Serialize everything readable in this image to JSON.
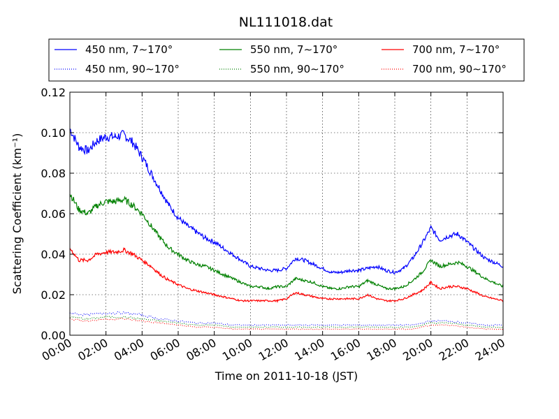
{
  "chart_data": {
    "type": "line",
    "title": "NL111018.dat",
    "xlabel": "Time on 2011-10-18 (JST)",
    "ylabel": "Scattering Coefficient (km⁻¹)",
    "xlim": [
      "00:00",
      "24:00"
    ],
    "ylim": [
      0,
      0.12
    ],
    "x_ticks": [
      "00:00",
      "02:00",
      "04:00",
      "06:00",
      "08:00",
      "10:00",
      "12:00",
      "14:00",
      "16:00",
      "18:00",
      "20:00",
      "22:00",
      "24:00"
    ],
    "y_ticks": [
      "0.00",
      "0.02",
      "0.04",
      "0.06",
      "0.08",
      "0.10",
      "0.12"
    ],
    "grid": true,
    "legend_position": "top",
    "series": [
      {
        "name": "450 nm, 7∼170°",
        "color": "#0000ff",
        "style": "solid",
        "x": [
          0,
          0.5,
          1,
          1.5,
          2,
          2.5,
          3,
          3.5,
          4,
          4.5,
          5,
          5.5,
          6,
          6.5,
          7,
          7.5,
          8,
          8.5,
          9,
          9.5,
          10,
          10.5,
          11,
          11.5,
          12,
          12.5,
          13,
          13.5,
          14,
          14.5,
          15,
          15.5,
          16,
          16.5,
          17,
          17.5,
          18,
          18.5,
          19,
          19.5,
          20,
          20.5,
          21,
          21.5,
          22,
          22.5,
          23,
          23.5,
          24
        ],
        "y": [
          0.102,
          0.093,
          0.091,
          0.096,
          0.098,
          0.098,
          0.099,
          0.095,
          0.088,
          0.08,
          0.072,
          0.064,
          0.058,
          0.054,
          0.051,
          0.048,
          0.046,
          0.043,
          0.04,
          0.037,
          0.034,
          0.033,
          0.032,
          0.032,
          0.033,
          0.038,
          0.037,
          0.035,
          0.033,
          0.031,
          0.031,
          0.032,
          0.032,
          0.033,
          0.034,
          0.032,
          0.031,
          0.033,
          0.038,
          0.045,
          0.053,
          0.047,
          0.049,
          0.05,
          0.046,
          0.042,
          0.038,
          0.036,
          0.034
        ]
      },
      {
        "name": "550 nm, 7∼170°",
        "color": "#008000",
        "style": "solid",
        "x": [
          0,
          0.5,
          1,
          1.5,
          2,
          2.5,
          3,
          3.5,
          4,
          4.5,
          5,
          5.5,
          6,
          6.5,
          7,
          7.5,
          8,
          8.5,
          9,
          9.5,
          10,
          10.5,
          11,
          11.5,
          12,
          12.5,
          13,
          13.5,
          14,
          14.5,
          15,
          15.5,
          16,
          16.5,
          17,
          17.5,
          18,
          18.5,
          19,
          19.5,
          20,
          20.5,
          21,
          21.5,
          22,
          22.5,
          23,
          23.5,
          24
        ],
        "y": [
          0.07,
          0.062,
          0.06,
          0.064,
          0.066,
          0.066,
          0.067,
          0.064,
          0.06,
          0.054,
          0.048,
          0.043,
          0.04,
          0.037,
          0.035,
          0.034,
          0.032,
          0.03,
          0.028,
          0.026,
          0.024,
          0.024,
          0.023,
          0.024,
          0.024,
          0.028,
          0.027,
          0.026,
          0.024,
          0.023,
          0.023,
          0.024,
          0.024,
          0.027,
          0.025,
          0.023,
          0.023,
          0.024,
          0.027,
          0.031,
          0.037,
          0.034,
          0.035,
          0.036,
          0.034,
          0.031,
          0.028,
          0.026,
          0.024
        ]
      },
      {
        "name": "700 nm, 7∼170°",
        "color": "#ff0000",
        "style": "solid",
        "x": [
          0,
          0.5,
          1,
          1.5,
          2,
          2.5,
          3,
          3.5,
          4,
          4.5,
          5,
          5.5,
          6,
          6.5,
          7,
          7.5,
          8,
          8.5,
          9,
          9.5,
          10,
          10.5,
          11,
          11.5,
          12,
          12.5,
          13,
          13.5,
          14,
          14.5,
          15,
          15.5,
          16,
          16.5,
          17,
          17.5,
          18,
          18.5,
          19,
          19.5,
          20,
          20.5,
          21,
          21.5,
          22,
          22.5,
          23,
          23.5,
          24
        ],
        "y": [
          0.043,
          0.037,
          0.037,
          0.04,
          0.041,
          0.041,
          0.042,
          0.04,
          0.037,
          0.034,
          0.03,
          0.027,
          0.025,
          0.023,
          0.022,
          0.021,
          0.02,
          0.019,
          0.018,
          0.017,
          0.017,
          0.017,
          0.017,
          0.017,
          0.018,
          0.021,
          0.02,
          0.019,
          0.018,
          0.018,
          0.018,
          0.018,
          0.018,
          0.02,
          0.018,
          0.017,
          0.017,
          0.018,
          0.02,
          0.022,
          0.026,
          0.023,
          0.024,
          0.024,
          0.023,
          0.021,
          0.019,
          0.018,
          0.017
        ]
      },
      {
        "name": "450 nm, 90∼170°",
        "color": "#0000ff",
        "style": "dotted",
        "x": [
          0,
          1,
          2,
          3,
          4,
          5,
          6,
          7,
          8,
          9,
          10,
          11,
          12,
          13,
          14,
          15,
          16,
          17,
          18,
          19,
          20,
          21,
          22,
          23,
          24
        ],
        "y": [
          0.011,
          0.01,
          0.011,
          0.011,
          0.01,
          0.008,
          0.007,
          0.006,
          0.006,
          0.005,
          0.005,
          0.005,
          0.005,
          0.005,
          0.005,
          0.005,
          0.005,
          0.005,
          0.005,
          0.005,
          0.007,
          0.007,
          0.006,
          0.005,
          0.005
        ]
      },
      {
        "name": "550 nm, 90∼170°",
        "color": "#008000",
        "style": "dotted",
        "x": [
          0,
          1,
          2,
          3,
          4,
          5,
          6,
          7,
          8,
          9,
          10,
          11,
          12,
          13,
          14,
          15,
          16,
          17,
          18,
          19,
          20,
          21,
          22,
          23,
          24
        ],
        "y": [
          0.009,
          0.008,
          0.009,
          0.009,
          0.008,
          0.007,
          0.006,
          0.005,
          0.005,
          0.004,
          0.004,
          0.004,
          0.004,
          0.004,
          0.004,
          0.004,
          0.004,
          0.004,
          0.004,
          0.004,
          0.006,
          0.006,
          0.005,
          0.004,
          0.004
        ]
      },
      {
        "name": "700 nm, 90∼170°",
        "color": "#ff0000",
        "style": "dotted",
        "x": [
          0,
          1,
          2,
          3,
          4,
          5,
          6,
          7,
          8,
          9,
          10,
          11,
          12,
          13,
          14,
          15,
          16,
          17,
          18,
          19,
          20,
          21,
          22,
          23,
          24
        ],
        "y": [
          0.008,
          0.007,
          0.008,
          0.008,
          0.007,
          0.006,
          0.005,
          0.004,
          0.004,
          0.003,
          0.003,
          0.003,
          0.003,
          0.003,
          0.003,
          0.003,
          0.003,
          0.003,
          0.003,
          0.003,
          0.005,
          0.005,
          0.004,
          0.003,
          0.003
        ]
      }
    ]
  }
}
